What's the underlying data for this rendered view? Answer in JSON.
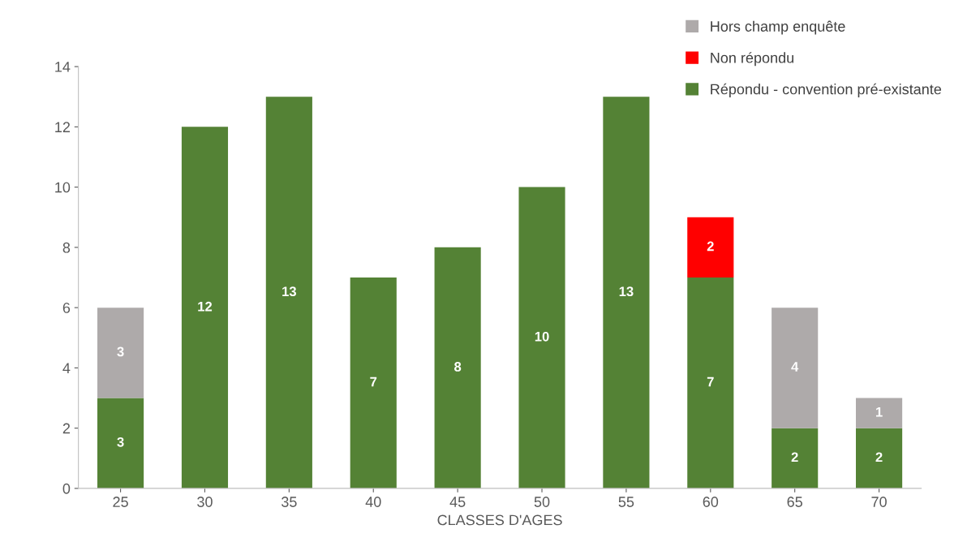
{
  "chart_data": {
    "type": "bar",
    "stacked": true,
    "xlabel": "CLASSES D'AGES",
    "categories": [
      "25",
      "30",
      "35",
      "40",
      "45",
      "50",
      "55",
      "60",
      "65",
      "70"
    ],
    "series": [
      {
        "name": "Répondu - convention pré-existante",
        "color": "#548235",
        "values": [
          3,
          12,
          13,
          7,
          8,
          10,
          13,
          7,
          2,
          2
        ]
      },
      {
        "name": "Non répondu",
        "color": "#ff0000",
        "values": [
          null,
          null,
          null,
          null,
          null,
          null,
          null,
          2,
          null,
          null
        ]
      },
      {
        "name": "Hors champ enquête",
        "color": "#aeaaaa",
        "values": [
          3,
          null,
          null,
          null,
          null,
          null,
          null,
          null,
          4,
          1
        ]
      }
    ],
    "ylim": [
      0,
      14
    ],
    "yticks": [
      0,
      2,
      4,
      6,
      8,
      10,
      12,
      14
    ],
    "data_labels": true,
    "grid": false,
    "legend": "top right"
  }
}
